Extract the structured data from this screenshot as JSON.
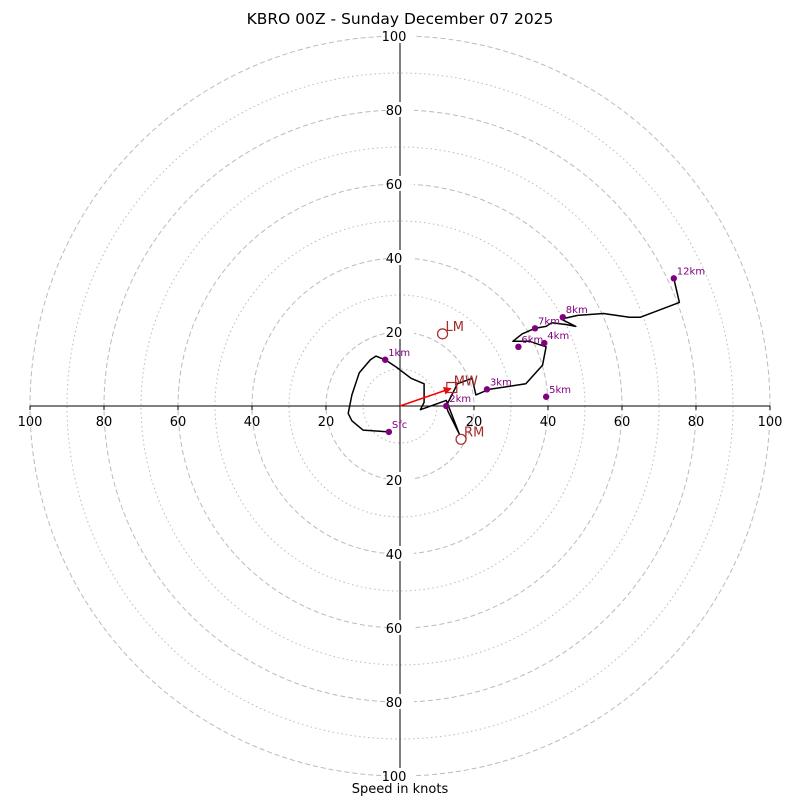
{
  "chart_data": {
    "type": "hodograph",
    "title": "KBRO 00Z - Sunday December 07 2025",
    "xlabel": "Speed in knots",
    "rings_major": [
      20,
      40,
      60,
      80,
      100
    ],
    "rings_minor": [
      10,
      30,
      50,
      70,
      90
    ],
    "axis_range": [
      -100,
      100
    ],
    "tick_labels": [
      "100",
      "80",
      "60",
      "40",
      "20",
      "20",
      "40",
      "60",
      "80",
      "100"
    ],
    "hodograph_line": [
      [
        -3,
        -7
      ],
      [
        -10,
        -6.5
      ],
      [
        -13,
        -4
      ],
      [
        -14,
        -2
      ],
      [
        -13,
        3
      ],
      [
        -11,
        9
      ],
      [
        -8,
        12.5
      ],
      [
        -6.5,
        13.5
      ],
      [
        -4,
        12.5
      ],
      [
        -1,
        10.5
      ],
      [
        3,
        7.5
      ],
      [
        6.5,
        6
      ],
      [
        6.5,
        1
      ],
      [
        5.5,
        -1
      ],
      [
        12.5,
        1.5
      ],
      [
        16,
        -7.5
      ],
      [
        13,
        -1.5
      ],
      [
        12.5,
        0
      ],
      [
        15.5,
        6
      ],
      [
        19.5,
        7.5
      ],
      [
        20.5,
        3
      ],
      [
        24,
        4.5
      ],
      [
        34,
        6
      ],
      [
        38.5,
        11
      ],
      [
        39.5,
        16
      ],
      [
        35,
        17.5
      ],
      [
        30.5,
        17.5
      ],
      [
        33,
        19.5
      ],
      [
        36.5,
        21
      ],
      [
        39.5,
        21.5
      ],
      [
        41,
        22.5
      ],
      [
        45,
        22
      ],
      [
        47.5,
        21.5
      ],
      [
        43.5,
        23.5
      ],
      [
        48,
        24.5
      ],
      [
        55,
        25
      ],
      [
        62,
        24
      ],
      [
        65,
        24
      ],
      [
        75.5,
        28
      ],
      [
        74,
        34.5
      ]
    ],
    "height_markers": [
      {
        "label": "Sfc",
        "u": -3,
        "v": -7
      },
      {
        "label": "1km",
        "u": -4,
        "v": 12.5
      },
      {
        "label": "2km",
        "u": 12.5,
        "v": 0
      },
      {
        "label": "3km",
        "u": 23.5,
        "v": 4.5
      },
      {
        "label": "4km",
        "u": 39,
        "v": 17
      },
      {
        "label": "5km",
        "u": 39.5,
        "v": 2.5
      },
      {
        "label": "6km",
        "u": 32,
        "v": 16
      },
      {
        "label": "7km",
        "u": 36.5,
        "v": 21
      },
      {
        "label": "8km",
        "u": 44,
        "v": 24
      },
      {
        "label": "12km",
        "u": 74,
        "v": 34.5
      }
    ],
    "storm_motion": {
      "LM": {
        "u": 11.5,
        "v": 19.5
      },
      "RM": {
        "u": 16.5,
        "v": -9
      },
      "MW": {
        "u": 14,
        "v": 5
      }
    },
    "colors": {
      "line": "#000000",
      "markers": "#800080",
      "storm": "#a52a2a",
      "arrow": "#ff0000",
      "grid": "#bbbbbb"
    }
  }
}
